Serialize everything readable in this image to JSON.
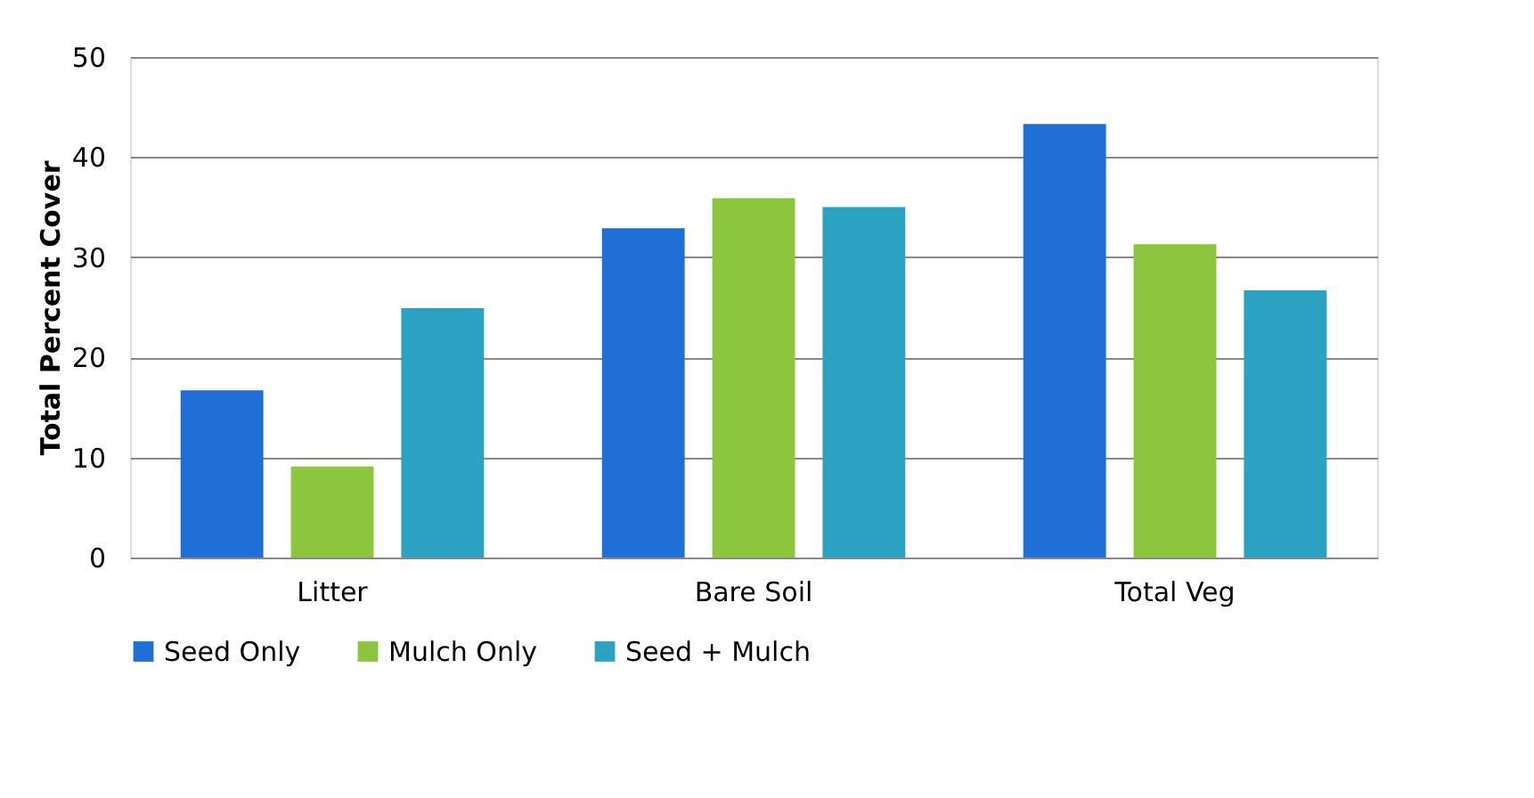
{
  "chart_data": {
    "type": "bar",
    "ylabel": "Total Percent Cover",
    "categories": [
      "Litter",
      "Bare Soil",
      "Total Veg"
    ],
    "series": [
      {
        "name": "Seed Only",
        "color": "#1f6fd6",
        "values": [
          16.7,
          32.9,
          43.3
        ]
      },
      {
        "name": "Mulch Only",
        "color": "#8cc63e",
        "values": [
          9.1,
          35.9,
          31.3
        ]
      },
      {
        "name": "Seed + Mulch",
        "color": "#2ba2c2",
        "values": [
          24.9,
          35.0,
          26.7
        ]
      }
    ],
    "ylim": [
      0,
      50
    ],
    "yticks": [
      0,
      10,
      20,
      30,
      40,
      50
    ],
    "grid": "y",
    "legend": "bottom"
  }
}
